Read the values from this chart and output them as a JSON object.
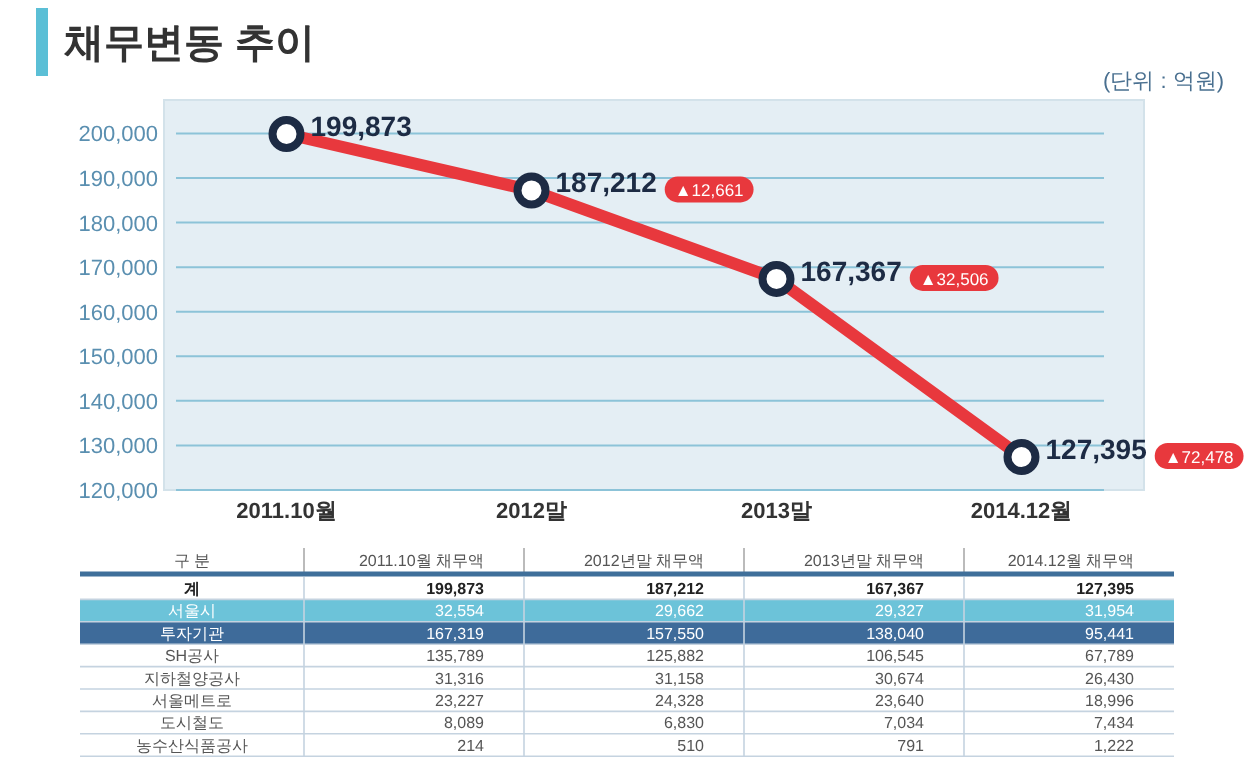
{
  "chart_data": [
    {
      "type": "line",
      "title": "채무변동 추이",
      "annotations": [
        "(단위 : 억원)",
        "▲12,661",
        "▲32,506",
        "▲72,478"
      ],
      "categories": [
        "2011.10월",
        "2012말",
        "2013말",
        "2014.12월"
      ],
      "series": [
        {
          "color": "#e8383d",
          "values": [
            199873,
            187212,
            167367,
            127395
          ],
          "value_labels": [
            "199,873",
            "187,212",
            "167,367",
            "127,395"
          ]
        }
      ],
      "ylim": [
        120000,
        207500
      ],
      "yticks": [
        {
          "value": 120000,
          "label": "120,000"
        },
        {
          "value": 130000,
          "label": "130,000"
        },
        {
          "value": 140000,
          "label": "140,000"
        },
        {
          "value": 150000,
          "label": "150,000"
        },
        {
          "value": 160000,
          "label": "160,000"
        },
        {
          "value": 170000,
          "label": "170,000"
        },
        {
          "value": 180000,
          "label": "180,000"
        },
        {
          "value": 190000,
          "label": "190,000"
        },
        {
          "value": 200000,
          "label": "200,000"
        }
      ],
      "grid": "y",
      "marker": "circle"
    },
    {
      "type": "heatmap",
      "ylabel": "구 분",
      "categories": [
        "2011.10월 채무액",
        "2012년말 채무액",
        "2013년말 채무액",
        "2014.12월 채무액"
      ],
      "y_categories": [
        "계",
        "서울시",
        "투자기관",
        "SH공사",
        "지하철양공사",
        "서울메트로",
        "도시철도",
        "농수산식품공사"
      ],
      "cells": [
        [
          199873,
          187212,
          167367,
          127395
        ],
        [
          32554,
          29662,
          29327,
          31954
        ],
        [
          167319,
          157550,
          138040,
          95441
        ],
        [
          135789,
          125882,
          106545,
          67789
        ],
        [
          31316,
          31158,
          30674,
          26430
        ],
        [
          23227,
          24328,
          23640,
          18996
        ],
        [
          8089,
          6830,
          7034,
          7434
        ],
        [
          214,
          510,
          791,
          1222
        ]
      ],
      "cell_labels": [
        [
          "199,873",
          "187,212",
          "167,367",
          "127,395"
        ],
        [
          "32,554",
          "29,662",
          "29,327",
          "31,954"
        ],
        [
          "167,319",
          "157,550",
          "138,040",
          "95,441"
        ],
        [
          "135,789",
          "125,882",
          "106,545",
          "67,789"
        ],
        [
          "31,316",
          "31,158",
          "30,674",
          "26,430"
        ],
        [
          "23,227",
          "24,328",
          "23,640",
          "18,996"
        ],
        [
          "8,089",
          "6,830",
          "7,034",
          "7,434"
        ],
        [
          "214",
          "510",
          "791",
          "1,222"
        ]
      ]
    }
  ]
}
